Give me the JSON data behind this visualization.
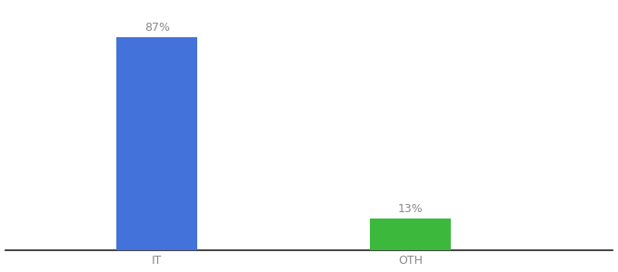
{
  "categories": [
    "IT",
    "OTH"
  ],
  "values": [
    87,
    13
  ],
  "bar_colors": [
    "#4472db",
    "#3cb83c"
  ],
  "bar_labels": [
    "87%",
    "13%"
  ],
  "background_color": "#ffffff",
  "ylim": [
    0,
    100
  ],
  "bar_width": 0.32,
  "x_positions": [
    1,
    2
  ],
  "xlim": [
    0.4,
    2.8
  ],
  "label_fontsize": 9,
  "tick_fontsize": 9,
  "label_color": "#888888",
  "tick_color": "#888888",
  "spine_color": "#222222"
}
